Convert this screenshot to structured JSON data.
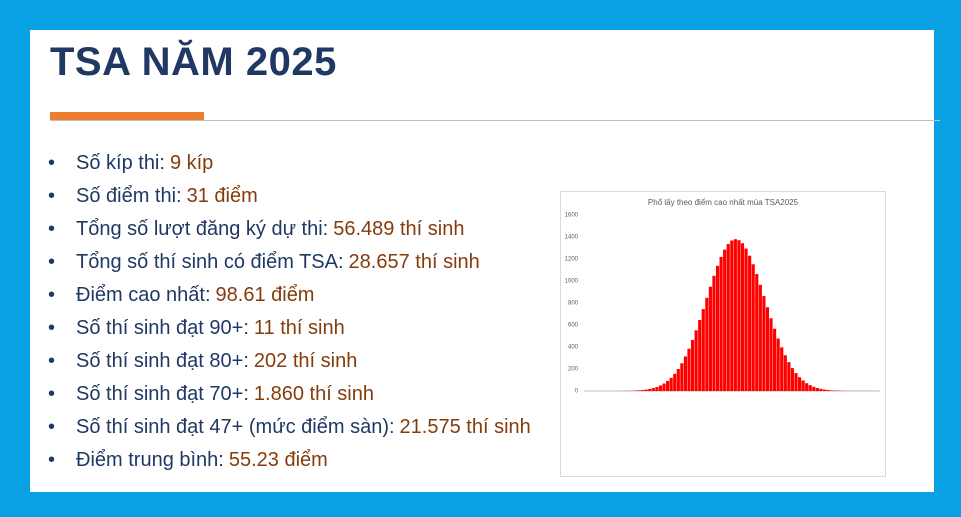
{
  "header": {
    "title": "TSA NĂM 2025"
  },
  "bullets": [
    {
      "label": "Số kíp thi:",
      "value": "9 kíp"
    },
    {
      "label": "Số điểm thi:",
      "value": "31 điểm"
    },
    {
      "label": "Tổng số lượt đăng ký dự thi:",
      "value": "56.489 thí sinh"
    },
    {
      "label": "Tổng số thí sinh có điểm TSA:",
      "value": "28.657 thí sinh"
    },
    {
      "label": "Điểm cao nhất:",
      "value": "98.61 điểm"
    },
    {
      "label": "Số thí sinh đạt 90+:",
      "value": "11 thí sinh"
    },
    {
      "label": "Số thí sinh đạt 80+:",
      "value": "202 thí sinh"
    },
    {
      "label": "Số thí sinh đạt 70+:",
      "value": "1.860 thí sinh"
    },
    {
      "label": "Số thí sinh đạt 47+ (mức điểm sàn):",
      "value": "21.575 thí sinh"
    },
    {
      "label": "Điểm trung bình:",
      "value": "55.23 điểm"
    }
  ],
  "chart_data": {
    "type": "histogram",
    "title": "Phổ lấy theo điểm cao nhất mùa TSA2025",
    "color": "#ff0000",
    "bins": [
      8.36,
      9.46,
      10.56,
      11.66,
      12.76,
      13.86,
      14.96,
      16.06,
      17.16,
      18.26,
      19.36,
      20.46,
      21.56,
      22.66,
      23.76,
      24.86,
      25.96,
      27.06,
      28.16,
      29.26,
      30.36,
      31.46,
      32.56,
      33.66,
      34.76,
      35.86,
      36.96,
      38.06,
      39.16,
      40.26,
      41.36,
      42.46,
      43.56,
      44.66,
      45.76,
      46.86,
      47.96,
      49.06,
      50.16,
      51.26,
      52.36,
      53.46,
      54.56,
      55.66,
      56.76,
      57.86,
      58.96,
      60.06,
      61.16,
      62.26,
      63.36,
      64.46,
      65.56,
      66.66,
      67.76,
      68.86,
      69.96,
      71.06,
      72.16,
      73.26,
      74.36,
      75.46,
      76.56,
      77.66,
      78.76,
      79.86,
      80.96,
      82.06,
      83.16,
      84.26,
      85.36,
      86.46,
      87.56,
      88.66,
      89.76,
      90.86,
      91.96,
      93.06,
      94.16,
      95.26,
      96.36,
      97.46,
      98.56,
      99.66
    ],
    "values": [
      0,
      0,
      0,
      0,
      0,
      0,
      0,
      0,
      0,
      0,
      1,
      1,
      2,
      2,
      4,
      6,
      9,
      13,
      18,
      26,
      36,
      50,
      68,
      91,
      120,
      156,
      200,
      252,
      314,
      384,
      464,
      552,
      646,
      745,
      847,
      948,
      1047,
      1138,
      1219,
      1285,
      1336,
      1368,
      1380,
      1371,
      1343,
      1295,
      1230,
      1152,
      1063,
      965,
      863,
      761,
      661,
      566,
      477,
      397,
      325,
      262,
      208,
      163,
      125,
      95,
      71,
      53,
      38,
      27,
      19,
      13,
      9,
      6,
      4,
      3,
      2,
      1,
      1,
      1,
      1,
      1,
      1,
      1,
      1,
      1,
      0
    ],
    "xlim": [
      8.36,
      99.66
    ],
    "ylim": [
      0,
      1600
    ],
    "yticks": [
      0,
      200,
      400,
      600,
      800,
      1000,
      1200,
      1400,
      1600
    ],
    "grid": false
  }
}
